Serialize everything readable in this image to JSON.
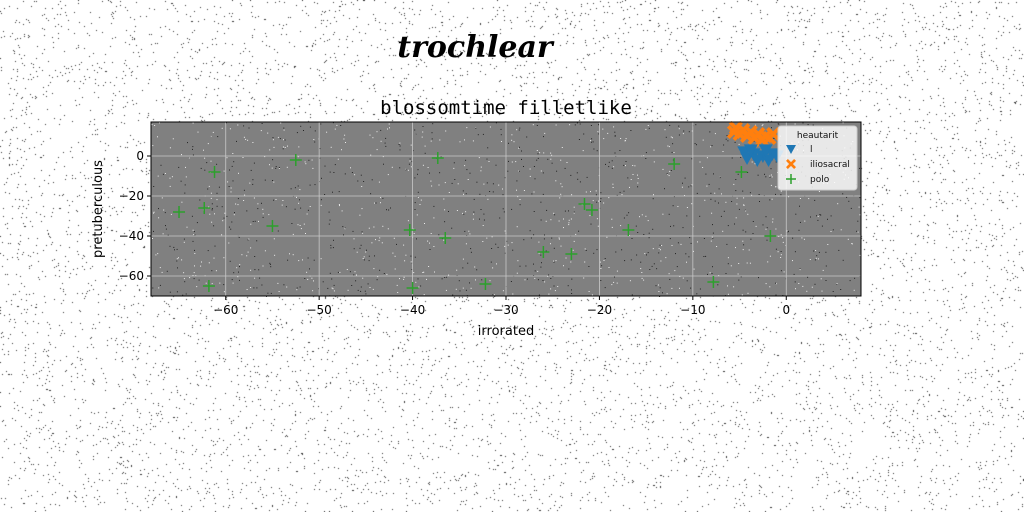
{
  "figure": {
    "suptitle": "trochlear"
  },
  "colors": {
    "background": "#ffffff",
    "axes_bg": "#808080",
    "grid": "#c8c8c8"
  },
  "chart_data": {
    "type": "scatter",
    "title": "blossomtime filletlike",
    "xlabel": "irrorated",
    "ylabel": "pretuberculous",
    "xlim": [
      -68,
      8
    ],
    "ylim": [
      -70,
      17
    ],
    "xticks": [
      -60,
      -50,
      -40,
      -30,
      -20,
      -10,
      0
    ],
    "xtick_labels": [
      "−60",
      "−50",
      "−40",
      "−30",
      "−20",
      "−10",
      "0"
    ],
    "yticks": [
      0,
      -20,
      -40,
      -60
    ],
    "ytick_labels": [
      "0",
      "−20",
      "−40",
      "−60"
    ],
    "grid": true,
    "legend": {
      "title": "heautarit",
      "placement": "top-right",
      "entries": [
        "l",
        "iliosacral",
        "polo"
      ]
    },
    "series": [
      {
        "name": "l",
        "marker": "triangle-down",
        "color": "#1f77b4",
        "points": [
          {
            "x": -4.5,
            "y": 2
          },
          {
            "x": -3.5,
            "y": 1
          },
          {
            "x": -2.5,
            "y": 0
          },
          {
            "x": -1.5,
            "y": 1
          },
          {
            "x": -4.2,
            "y": -1
          },
          {
            "x": -3.1,
            "y": -2
          },
          {
            "x": -1.9,
            "y": -2
          },
          {
            "x": -1.0,
            "y": 0
          },
          {
            "x": -3.8,
            "y": 3
          },
          {
            "x": -2.2,
            "y": 3
          }
        ]
      },
      {
        "name": "iliosacral",
        "marker": "x-filled",
        "color": "#ff7f0e",
        "points": [
          {
            "x": -5.4,
            "y": 14
          },
          {
            "x": -4.6,
            "y": 13
          },
          {
            "x": -3.8,
            "y": 12
          },
          {
            "x": -3.0,
            "y": 11
          },
          {
            "x": -2.2,
            "y": 10
          },
          {
            "x": -1.4,
            "y": 11
          },
          {
            "x": -5.0,
            "y": 11
          },
          {
            "x": -4.2,
            "y": 10
          },
          {
            "x": -3.4,
            "y": 9
          },
          {
            "x": -2.6,
            "y": 8
          },
          {
            "x": -1.8,
            "y": 9
          },
          {
            "x": -5.6,
            "y": 12
          }
        ]
      },
      {
        "name": "polo",
        "marker": "plus",
        "color": "#2ca02c",
        "points": [
          {
            "x": -65,
            "y": -28
          },
          {
            "x": -62.3,
            "y": -26
          },
          {
            "x": -61.2,
            "y": -8
          },
          {
            "x": -61.8,
            "y": -65
          },
          {
            "x": -55,
            "y": -35
          },
          {
            "x": -52.5,
            "y": -2
          },
          {
            "x": -40.3,
            "y": -37
          },
          {
            "x": -40,
            "y": -66
          },
          {
            "x": -37.3,
            "y": -1
          },
          {
            "x": -36.5,
            "y": -41
          },
          {
            "x": -32.2,
            "y": -64
          },
          {
            "x": -26,
            "y": -48
          },
          {
            "x": -23,
            "y": -49
          },
          {
            "x": -21.6,
            "y": -24
          },
          {
            "x": -20.8,
            "y": -27
          },
          {
            "x": -16.9,
            "y": -37
          },
          {
            "x": -12,
            "y": -4
          },
          {
            "x": -7.8,
            "y": -63
          },
          {
            "x": -4.8,
            "y": -8
          },
          {
            "x": -1.7,
            "y": -40
          }
        ]
      }
    ]
  }
}
